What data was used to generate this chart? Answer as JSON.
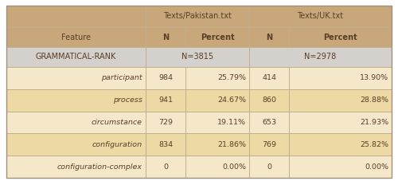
{
  "header_top": [
    "Texts/Pakistan.txt",
    "Texts/UK.txt"
  ],
  "header_sub": [
    "Feature",
    "N",
    "Percent",
    "N",
    "Percent"
  ],
  "rank_row_label": "GRAMMATICAL-RANK",
  "rank_row_pak": "N=3815",
  "rank_row_uk": "N=2978",
  "rows": [
    [
      "participant",
      "984",
      "25.79%",
      "414",
      "13.90%"
    ],
    [
      "process",
      "941",
      "24.67%",
      "860",
      "28.88%"
    ],
    [
      "circumstance",
      "729",
      "19.11%",
      "653",
      "21.93%"
    ],
    [
      "configuration",
      "834",
      "21.86%",
      "769",
      "25.82%"
    ],
    [
      "configuration-complex",
      "0",
      "0.00%",
      "0",
      "0.00%"
    ]
  ],
  "header_bg": "#C8A87A",
  "rank_bg": "#D4D0CC",
  "row_bg_light": "#F5E8C8",
  "row_bg_mid": "#EDD9A3",
  "border_color": "#C0B090",
  "text_color": "#5A3E28",
  "fig_bg": "#FFFFFF",
  "table_border": "#A09080"
}
